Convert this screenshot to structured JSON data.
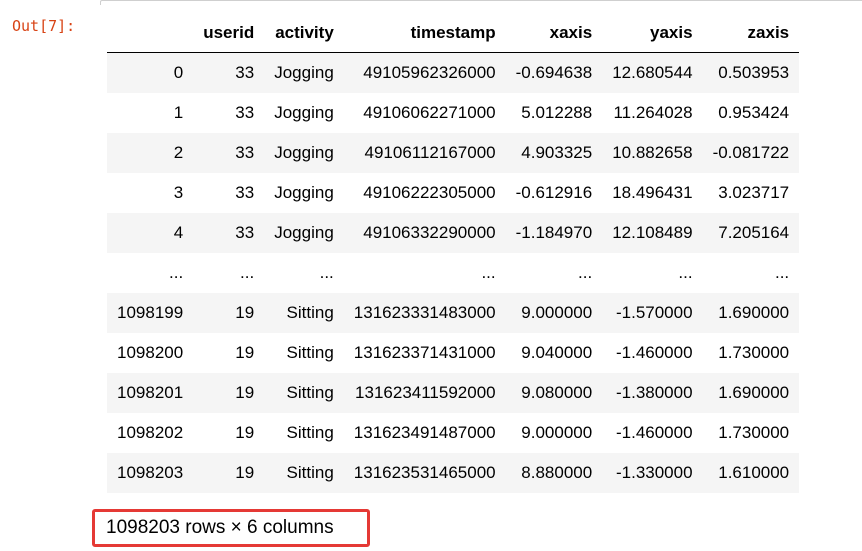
{
  "output_prompt": "Out[7]:",
  "table": {
    "index_header": "",
    "columns": [
      "userid",
      "activity",
      "timestamp",
      "xaxis",
      "yaxis",
      "zaxis"
    ],
    "rows": [
      {
        "index": "0",
        "cells": [
          "33",
          "Jogging",
          "49105962326000",
          "-0.694638",
          "12.680544",
          "0.503953"
        ]
      },
      {
        "index": "1",
        "cells": [
          "33",
          "Jogging",
          "49106062271000",
          "5.012288",
          "11.264028",
          "0.953424"
        ]
      },
      {
        "index": "2",
        "cells": [
          "33",
          "Jogging",
          "49106112167000",
          "4.903325",
          "10.882658",
          "-0.081722"
        ]
      },
      {
        "index": "3",
        "cells": [
          "33",
          "Jogging",
          "49106222305000",
          "-0.612916",
          "18.496431",
          "3.023717"
        ]
      },
      {
        "index": "4",
        "cells": [
          "33",
          "Jogging",
          "49106332290000",
          "-1.184970",
          "12.108489",
          "7.205164"
        ]
      },
      {
        "index": "...",
        "cells": [
          "...",
          "...",
          "...",
          "...",
          "...",
          "..."
        ]
      },
      {
        "index": "1098199",
        "cells": [
          "19",
          "Sitting",
          "131623331483000",
          "9.000000",
          "-1.570000",
          "1.690000"
        ]
      },
      {
        "index": "1098200",
        "cells": [
          "19",
          "Sitting",
          "131623371431000",
          "9.040000",
          "-1.460000",
          "1.730000"
        ]
      },
      {
        "index": "1098201",
        "cells": [
          "19",
          "Sitting",
          "131623411592000",
          "9.080000",
          "-1.380000",
          "1.690000"
        ]
      },
      {
        "index": "1098202",
        "cells": [
          "19",
          "Sitting",
          "131623491487000",
          "9.000000",
          "-1.460000",
          "1.730000"
        ]
      },
      {
        "index": "1098203",
        "cells": [
          "19",
          "Sitting",
          "131623531465000",
          "8.880000",
          "-1.330000",
          "1.610000"
        ]
      }
    ]
  },
  "summary": "1098203 rows × 6 columns",
  "colors": {
    "prompt": "#d84315",
    "highlight_box": "#e53935",
    "striped_row": "#f5f5f5"
  }
}
